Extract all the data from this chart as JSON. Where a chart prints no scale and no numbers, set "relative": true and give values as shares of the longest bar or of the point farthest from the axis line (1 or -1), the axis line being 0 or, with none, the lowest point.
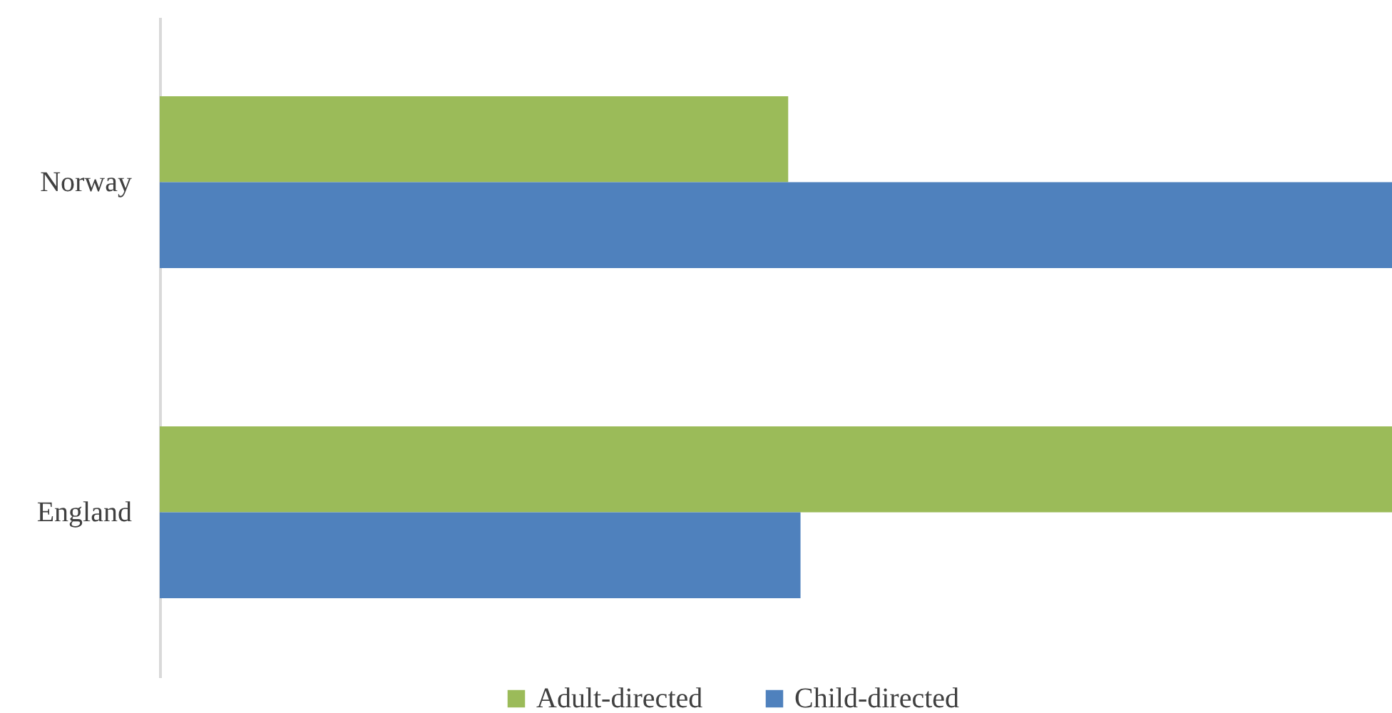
{
  "chart_data": {
    "type": "bar",
    "orientation": "horizontal",
    "relative": true,
    "categories": [
      "Norway",
      "England"
    ],
    "series": [
      {
        "name": "Adult-directed",
        "color": "#9bbb59",
        "values": [
          0.51,
          1
        ]
      },
      {
        "name": "Child-directed",
        "color": "#4f81bd",
        "values": [
          1,
          0.52
        ]
      }
    ],
    "legend": "bottom"
  }
}
